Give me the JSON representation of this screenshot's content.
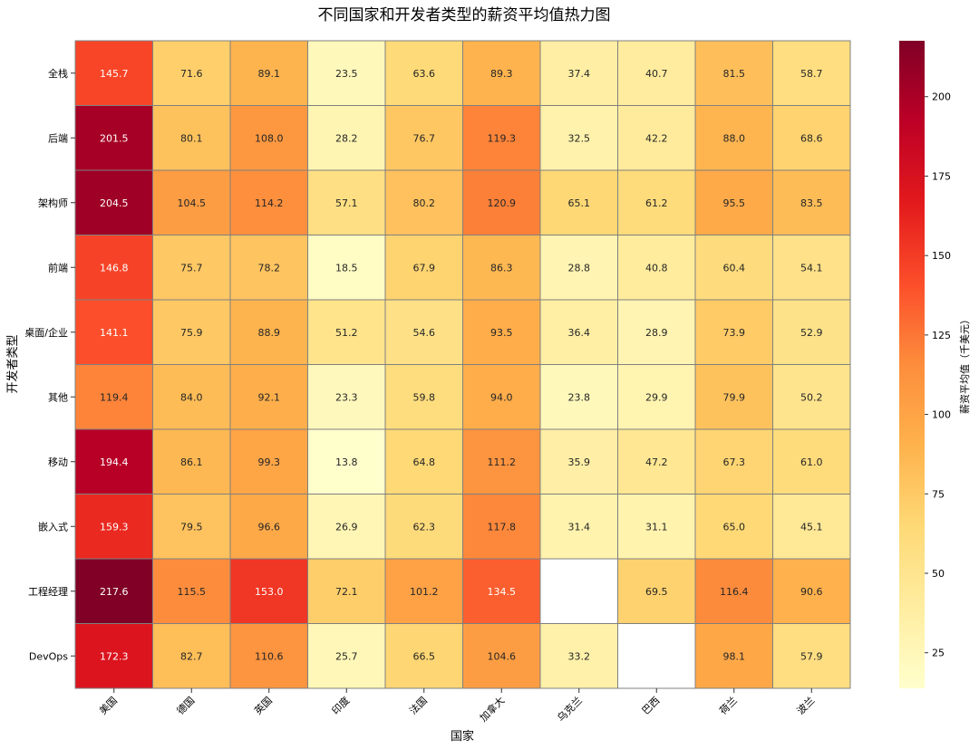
{
  "chart_data": {
    "type": "heatmap",
    "title": "不同国家和开发者类型的薪资平均值热力图",
    "xlabel": "国家",
    "ylabel": "开发者类型",
    "colorbar_label": "薪资平均值（千美元）",
    "colormap": [
      "#ffffcc",
      "#ffeda0",
      "#fed976",
      "#feb24c",
      "#fd8d3c",
      "#fc4e2a",
      "#e31a1c",
      "#bd0026",
      "#800026"
    ],
    "color_range": [
      13.8,
      217.6
    ],
    "colorbar_ticks": [
      25,
      50,
      75,
      100,
      125,
      150,
      175,
      200
    ],
    "grid_line_color": "#808080",
    "x_categories": [
      "美国",
      "德国",
      "英国",
      "印度",
      "法国",
      "加拿大",
      "乌克兰",
      "巴西",
      "荷兰",
      "波兰"
    ],
    "y_categories": [
      "全栈",
      "后端",
      "架构师",
      "前端",
      "桌面/企业",
      "其他",
      "移动",
      "嵌入式",
      "工程经理",
      "DevOps"
    ],
    "values": [
      [
        145.7,
        71.6,
        89.1,
        23.5,
        63.6,
        89.3,
        37.4,
        40.7,
        81.5,
        58.7
      ],
      [
        201.5,
        80.1,
        108.0,
        28.2,
        76.7,
        119.3,
        32.5,
        42.2,
        88.0,
        68.6
      ],
      [
        204.5,
        104.5,
        114.2,
        57.1,
        80.2,
        120.9,
        65.1,
        61.2,
        95.5,
        83.5
      ],
      [
        146.8,
        75.7,
        78.2,
        18.5,
        67.9,
        86.3,
        28.8,
        40.8,
        60.4,
        54.1
      ],
      [
        141.1,
        75.9,
        88.9,
        51.2,
        54.6,
        93.5,
        36.4,
        28.9,
        73.9,
        52.9
      ],
      [
        119.4,
        84.0,
        92.1,
        23.3,
        59.8,
        94.0,
        23.8,
        29.9,
        79.9,
        50.2
      ],
      [
        194.4,
        86.1,
        99.3,
        13.8,
        64.8,
        111.2,
        35.9,
        47.2,
        67.3,
        61.0
      ],
      [
        159.3,
        79.5,
        96.6,
        26.9,
        62.3,
        117.8,
        31.4,
        31.1,
        65.0,
        45.1
      ],
      [
        217.6,
        115.5,
        153.0,
        72.1,
        101.2,
        134.5,
        null,
        69.5,
        116.4,
        90.6
      ],
      [
        172.3,
        82.7,
        110.6,
        25.7,
        66.5,
        104.6,
        33.2,
        null,
        98.1,
        57.9
      ]
    ]
  }
}
